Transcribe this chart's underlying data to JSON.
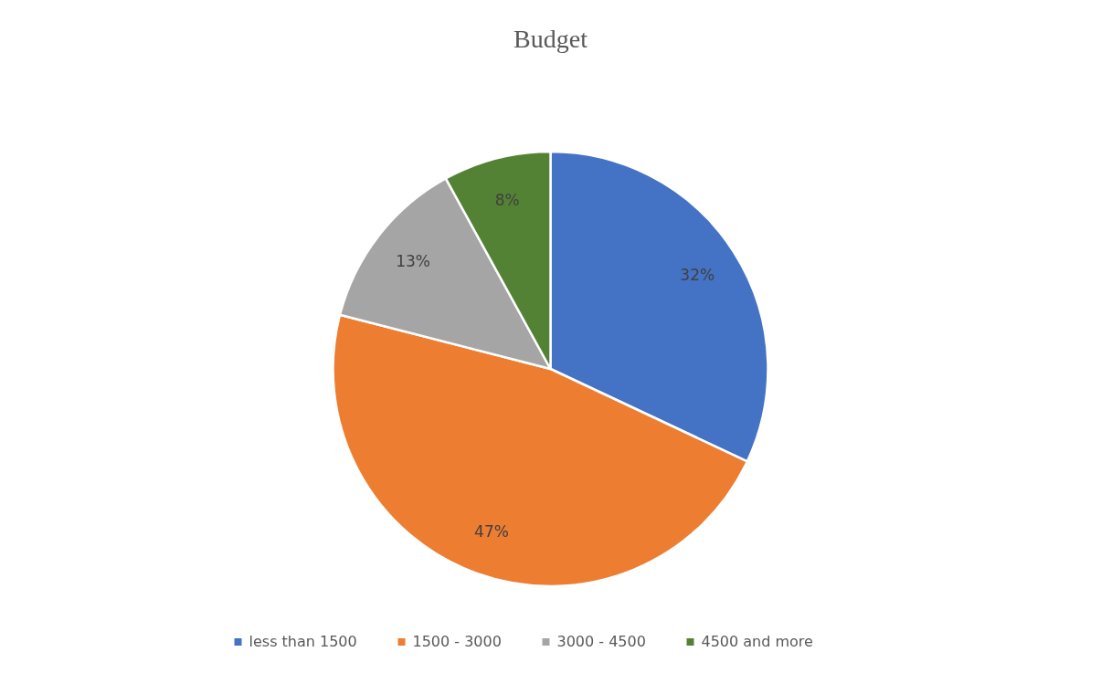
{
  "chart_data": {
    "type": "pie",
    "title": "Budget",
    "categories": [
      "less than 1500",
      "1500 - 3000",
      "3000 - 4500",
      "4500 and more"
    ],
    "values": [
      32,
      47,
      13,
      8
    ],
    "colors": [
      "#4472c4",
      "#ed7d31",
      "#a5a5a5",
      "#548235"
    ],
    "value_labels": [
      "32%",
      "47%",
      "13%",
      "8%"
    ],
    "legend": "bottom"
  }
}
